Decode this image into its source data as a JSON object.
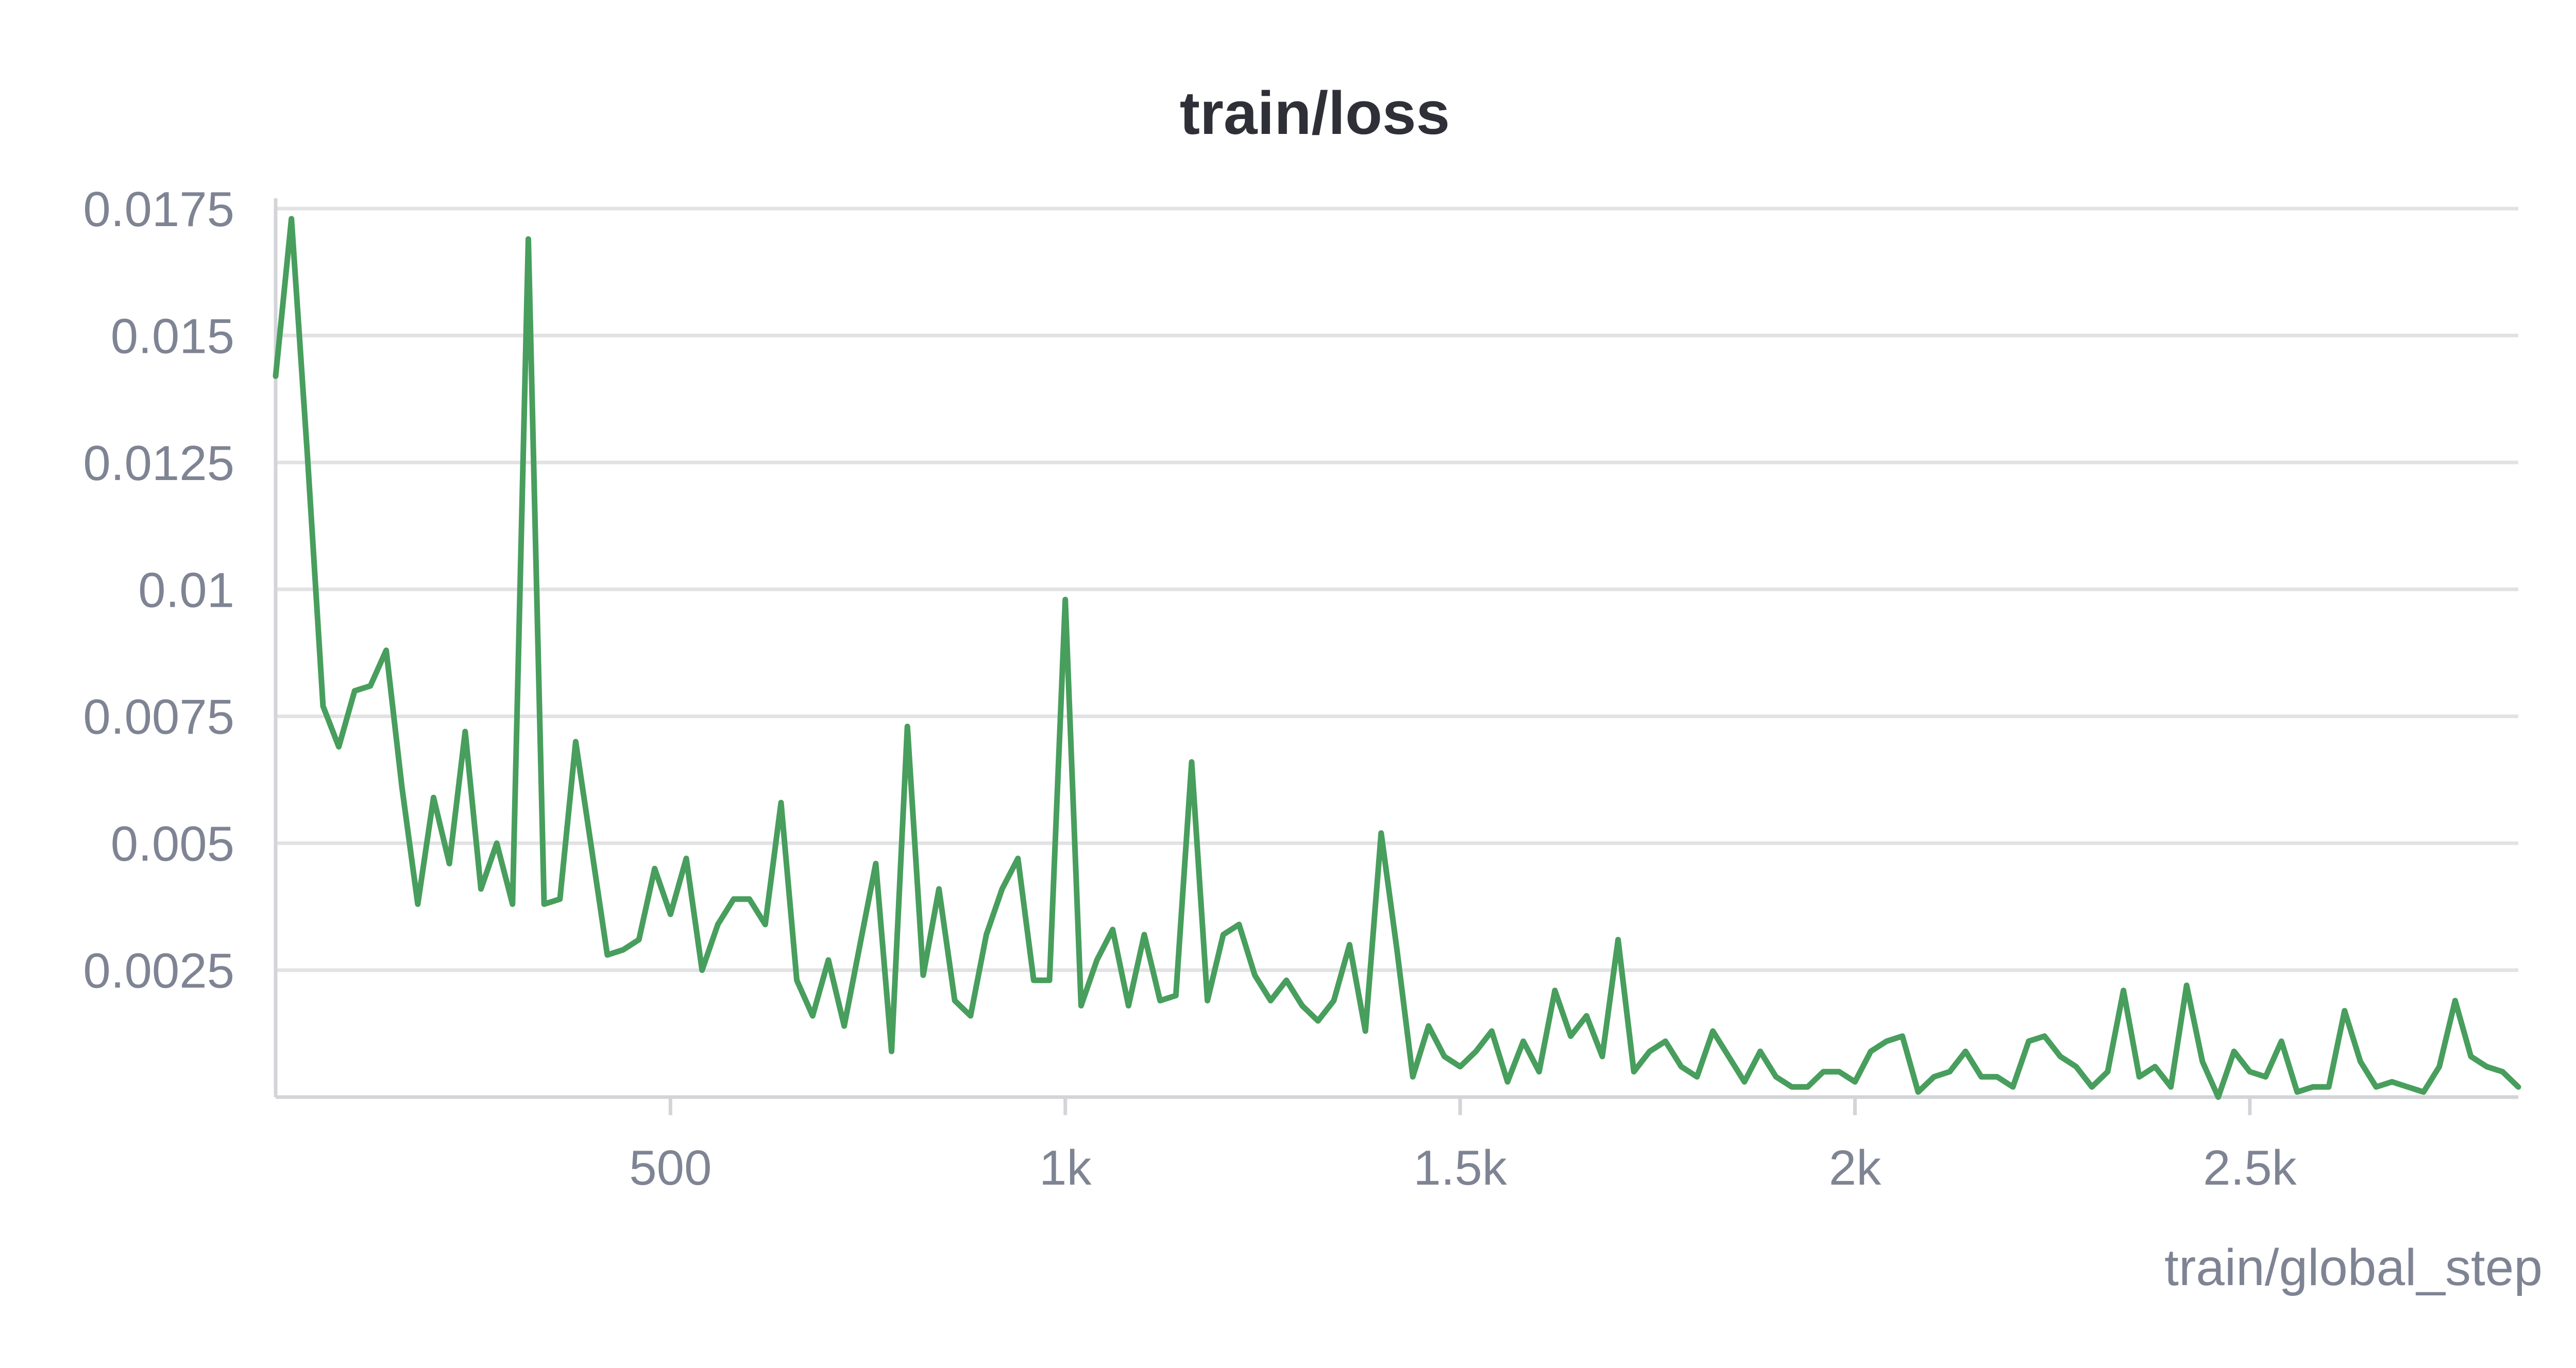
{
  "chart_data": {
    "type": "line",
    "title": "train/loss",
    "xlabel": "train/global_step",
    "ylabel": "",
    "xlim": [
      0,
      2840
    ],
    "ylim": [
      0,
      0.0175
    ],
    "x_ticks": [
      {
        "value": 500,
        "label": "500"
      },
      {
        "value": 1000,
        "label": "1k"
      },
      {
        "value": 1500,
        "label": "1.5k"
      },
      {
        "value": 2000,
        "label": "2k"
      },
      {
        "value": 2500,
        "label": "2.5k"
      }
    ],
    "y_ticks": [
      {
        "value": 0.0025,
        "label": "0.0025"
      },
      {
        "value": 0.005,
        "label": "0.005"
      },
      {
        "value": 0.0075,
        "label": "0.0075"
      },
      {
        "value": 0.01,
        "label": "0.01"
      },
      {
        "value": 0.0125,
        "label": "0.0125"
      },
      {
        "value": 0.015,
        "label": "0.015"
      },
      {
        "value": 0.0175,
        "label": "0.0175"
      }
    ],
    "grid": true,
    "legend": "none",
    "color": "#489e5d",
    "series": [
      {
        "x": [
          0,
          20,
          40,
          60,
          80,
          100,
          120,
          140,
          160,
          180,
          200,
          220,
          240,
          260,
          280,
          300,
          320,
          340,
          360,
          380,
          400,
          420,
          440,
          460,
          480,
          500,
          520,
          540,
          560,
          580,
          600,
          620,
          640,
          660,
          680,
          700,
          720,
          740,
          760,
          780,
          800,
          820,
          840,
          860,
          880,
          900,
          920,
          940,
          960,
          980,
          1000,
          1020,
          1040,
          1060,
          1080,
          1100,
          1120,
          1140,
          1160,
          1180,
          1200,
          1220,
          1240,
          1260,
          1280,
          1300,
          1320,
          1340,
          1360,
          1380,
          1400,
          1420,
          1440,
          1460,
          1480,
          1500,
          1520,
          1540,
          1560,
          1580,
          1600,
          1620,
          1640,
          1660,
          1680,
          1700,
          1720,
          1740,
          1760,
          1780,
          1800,
          1820,
          1840,
          1860,
          1880,
          1900,
          1920,
          1940,
          1960,
          1980,
          2000,
          2020,
          2040,
          2060,
          2080,
          2100,
          2120,
          2140,
          2160,
          2180,
          2200,
          2220,
          2240,
          2260,
          2280,
          2300,
          2320,
          2340,
          2360,
          2380,
          2400,
          2420,
          2440,
          2460,
          2480,
          2500,
          2520,
          2540,
          2560,
          2580,
          2600,
          2620,
          2640,
          2660,
          2680,
          2700,
          2720,
          2740,
          2760,
          2780,
          2800,
          2820,
          2840
        ],
        "y": [
          0.0142,
          0.0173,
          0.0127,
          0.0077,
          0.0069,
          0.008,
          0.0081,
          0.0088,
          0.0061,
          0.0038,
          0.0059,
          0.0046,
          0.0072,
          0.0041,
          0.005,
          0.0038,
          0.0169,
          0.0038,
          0.0039,
          0.007,
          0.0049,
          0.0028,
          0.0029,
          0.0031,
          0.0045,
          0.0036,
          0.0047,
          0.0025,
          0.0034,
          0.0039,
          0.0039,
          0.0034,
          0.0058,
          0.0023,
          0.0016,
          0.0027,
          0.0014,
          0.003,
          0.0046,
          0.0009,
          0.0073,
          0.0024,
          0.0041,
          0.0019,
          0.0016,
          0.0032,
          0.0041,
          0.0047,
          0.0023,
          0.0023,
          0.0098,
          0.0018,
          0.0027,
          0.0033,
          0.0018,
          0.0032,
          0.0019,
          0.002,
          0.0066,
          0.0019,
          0.0032,
          0.0034,
          0.0024,
          0.0019,
          0.0023,
          0.0018,
          0.0015,
          0.0019,
          0.003,
          0.0013,
          0.0052,
          0.0029,
          0.0004,
          0.0014,
          0.0008,
          0.0006,
          0.0009,
          0.0013,
          0.0003,
          0.0011,
          0.0005,
          0.0021,
          0.0012,
          0.0016,
          0.0008,
          0.0031,
          0.0005,
          0.0009,
          0.0011,
          0.0006,
          0.0004,
          0.0013,
          0.0008,
          0.0003,
          0.0009,
          0.0004,
          0.0002,
          0.0002,
          0.0005,
          0.0005,
          0.0003,
          0.0009,
          0.0011,
          0.0012,
          0.0001,
          0.0004,
          0.0005,
          0.0009,
          0.0004,
          0.0004,
          0.0002,
          0.0011,
          0.0012,
          0.0008,
          0.0006,
          0.0002,
          0.0005,
          0.0021,
          0.0004,
          0.0006,
          0.0002,
          0.0022,
          0.0007,
          0.0,
          0.0009,
          0.0005,
          0.0004,
          0.0011,
          0.0001,
          0.0002,
          0.0002,
          0.0017,
          0.0007,
          0.0002,
          0.0003,
          0.0002,
          0.0001,
          0.0006,
          0.0019,
          0.0008,
          0.0006,
          0.0005,
          0.0002
        ]
      }
    ]
  }
}
